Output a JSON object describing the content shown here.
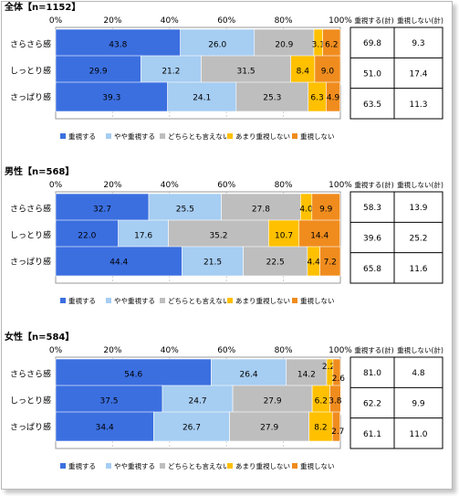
{
  "chart_data": [
    {
      "type": "bar",
      "stacked": true,
      "orientation": "horizontal",
      "title": "全体【n=1152】",
      "categories": [
        "さらさら感",
        "しっとり感",
        "さっぱり感"
      ],
      "series": [
        {
          "name": "重視する",
          "values": [
            43.8,
            29.9,
            39.3
          ]
        },
        {
          "name": "やや重視する",
          "values": [
            26.0,
            21.2,
            24.1
          ]
        },
        {
          "name": "どちらとも言えない",
          "values": [
            20.9,
            31.5,
            25.3
          ]
        },
        {
          "name": "あまり重視しない",
          "values": [
            3.1,
            8.4,
            6.3
          ]
        },
        {
          "name": "重視しない",
          "values": [
            6.2,
            9.0,
            4.9
          ]
        }
      ],
      "xlim": [
        0,
        100
      ],
      "xticks": [
        "0%",
        "20%",
        "40%",
        "60%",
        "80%",
        "100%"
      ],
      "summary_headers": [
        "重視する(計)",
        "重視しない(計)"
      ],
      "summary": [
        [
          "69.8",
          "9.3"
        ],
        [
          "51.0",
          "17.4"
        ],
        [
          "63.5",
          "11.3"
        ]
      ]
    },
    {
      "type": "bar",
      "stacked": true,
      "orientation": "horizontal",
      "title": "男性【n=568】",
      "categories": [
        "さらさら感",
        "しっとり感",
        "さっぱり感"
      ],
      "series": [
        {
          "name": "重視する",
          "values": [
            32.7,
            22.0,
            44.4
          ]
        },
        {
          "name": "やや重視する",
          "values": [
            25.5,
            17.6,
            21.5
          ]
        },
        {
          "name": "どちらとも言えない",
          "values": [
            27.8,
            35.2,
            22.5
          ]
        },
        {
          "name": "あまり重視しない",
          "values": [
            4.0,
            10.7,
            4.4
          ]
        },
        {
          "name": "重視しない",
          "values": [
            9.9,
            14.4,
            7.2
          ]
        }
      ],
      "xlim": [
        0,
        100
      ],
      "xticks": [
        "0%",
        "20%",
        "40%",
        "60%",
        "80%",
        "100%"
      ],
      "summary_headers": [
        "重視する(計)",
        "重視しない(計)"
      ],
      "summary": [
        [
          "58.3",
          "13.9"
        ],
        [
          "39.6",
          "25.2"
        ],
        [
          "65.8",
          "11.6"
        ]
      ]
    },
    {
      "type": "bar",
      "stacked": true,
      "orientation": "horizontal",
      "title": "女性【n=584】",
      "categories": [
        "さらさら感",
        "しっとり感",
        "さっぱり感"
      ],
      "series": [
        {
          "name": "重視する",
          "values": [
            54.6,
            37.5,
            34.4
          ]
        },
        {
          "name": "やや重視する",
          "values": [
            26.4,
            24.7,
            26.7
          ]
        },
        {
          "name": "どちらとも言えない",
          "values": [
            14.2,
            27.9,
            27.9
          ]
        },
        {
          "name": "あまり重視しない",
          "values": [
            2.2,
            6.2,
            8.2
          ]
        },
        {
          "name": "重視しない",
          "values": [
            2.6,
            3.8,
            2.7
          ]
        }
      ],
      "xlim": [
        0,
        100
      ],
      "xticks": [
        "0%",
        "20%",
        "40%",
        "60%",
        "80%",
        "100%"
      ],
      "summary_headers": [
        "重視する(計)",
        "重視しない(計)"
      ],
      "summary": [
        [
          "81.0",
          "4.8"
        ],
        [
          "62.2",
          "9.9"
        ],
        [
          "61.1",
          "11.0"
        ]
      ]
    }
  ],
  "colors": {
    "series": [
      "#3b6fe0",
      "#a6cdf2",
      "#bebebe",
      "#ffc000",
      "#f08c1e"
    ],
    "grid": "#cccccc",
    "frame": "#9a9a9a"
  },
  "legend_position": "bottom"
}
